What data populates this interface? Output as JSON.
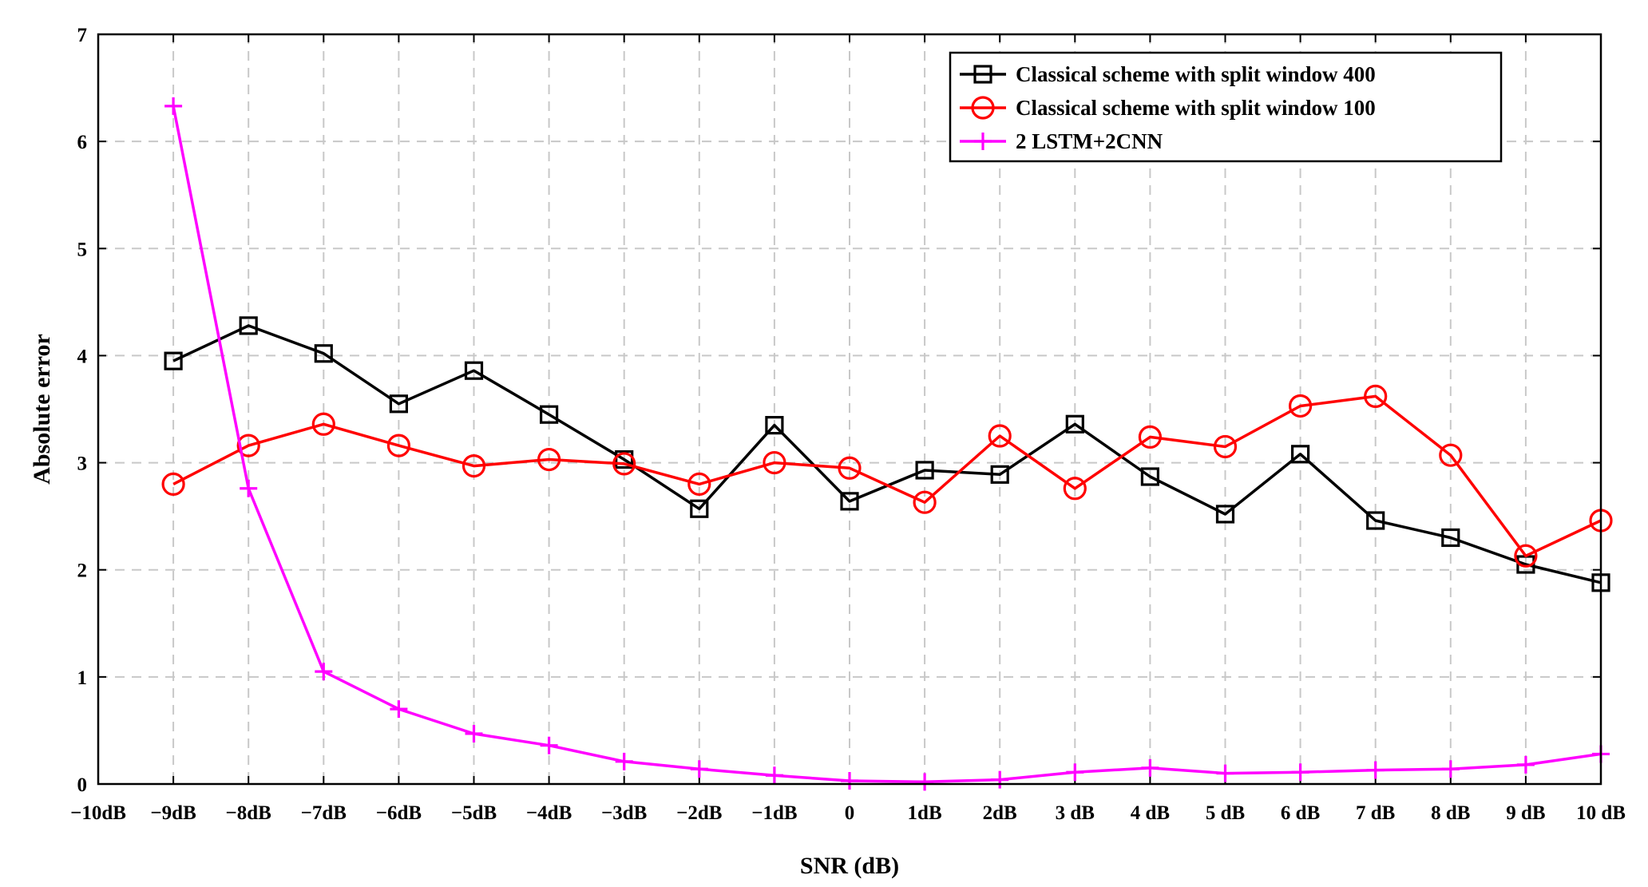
{
  "chart_data": {
    "type": "line",
    "title": "",
    "xlabel": "SNR (dB)",
    "ylabel": "Absolute error",
    "x_tick_labels": [
      "−10dB",
      "−9dB",
      "−8dB",
      "−7dB",
      "−6dB",
      "−5dB",
      "−4dB",
      "−3dB",
      "−2dB",
      "−1dB",
      "0",
      "1dB",
      "2dB",
      "3 dB",
      "4 dB",
      "5 dB",
      "6 dB",
      "7 dB",
      "8 dB",
      "9 dB",
      "10 dB"
    ],
    "y_ticks": [
      0,
      1,
      2,
      3,
      4,
      5,
      6,
      7
    ],
    "x": [
      -9,
      -8,
      -7,
      -6,
      -5,
      -4,
      -3,
      -2,
      -1,
      0,
      1,
      2,
      3,
      4,
      5,
      6,
      7,
      8,
      9,
      10
    ],
    "xlim": [
      -10,
      10
    ],
    "ylim": [
      0,
      7
    ],
    "grid": true,
    "legend_position": "top-right",
    "series": [
      {
        "name": "Classical scheme with split window 400",
        "color": "#000000",
        "marker": "square",
        "values": [
          3.95,
          4.28,
          4.02,
          3.55,
          3.86,
          3.45,
          3.03,
          2.57,
          3.35,
          2.64,
          2.93,
          2.89,
          3.36,
          2.87,
          2.52,
          3.08,
          2.46,
          2.3,
          2.05,
          1.88
        ]
      },
      {
        "name": "Classical scheme with split window 100",
        "color": "#ff0000",
        "marker": "circle",
        "values": [
          2.8,
          3.16,
          3.36,
          3.16,
          2.97,
          3.03,
          2.99,
          2.8,
          3.0,
          2.95,
          2.63,
          3.25,
          2.76,
          3.24,
          3.15,
          3.53,
          3.62,
          3.07,
          2.13,
          2.46
        ]
      },
      {
        "name": "2 LSTM+2CNN",
        "color": "#ff00ff",
        "marker": "plus",
        "values": [
          6.33,
          2.76,
          1.05,
          0.7,
          0.47,
          0.36,
          0.21,
          0.14,
          0.08,
          0.03,
          0.02,
          0.04,
          0.11,
          0.15,
          0.1,
          0.11,
          0.13,
          0.14,
          0.18,
          0.28
        ]
      }
    ]
  }
}
